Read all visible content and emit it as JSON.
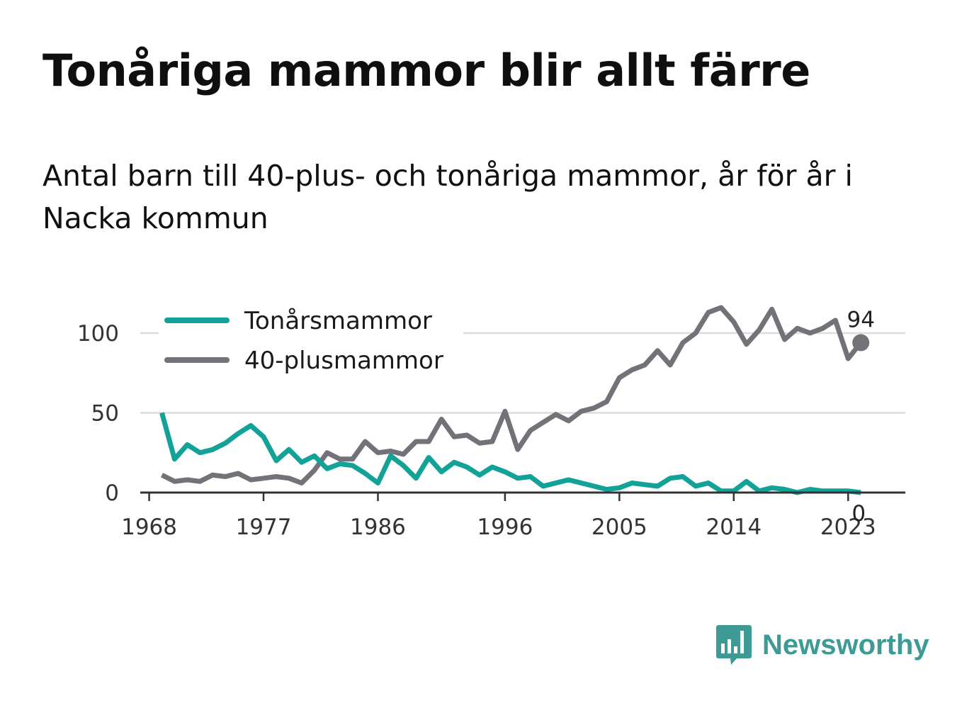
{
  "header": {
    "title": "Tonåriga mammor blir allt färre",
    "subtitle": "Antal barn till 40-plus- och tonåriga mammor, år för år i Nacka kommun"
  },
  "brand": {
    "name": "Newsworthy",
    "icon": "bar-chart-speech-bubble-icon",
    "color": "#3d9a94"
  },
  "chart_data": {
    "type": "line",
    "x": [
      1969,
      1970,
      1971,
      1972,
      1973,
      1974,
      1975,
      1976,
      1977,
      1978,
      1979,
      1980,
      1981,
      1982,
      1983,
      1984,
      1985,
      1986,
      1987,
      1988,
      1989,
      1990,
      1991,
      1992,
      1993,
      1994,
      1995,
      1996,
      1997,
      1998,
      1999,
      2000,
      2001,
      2002,
      2003,
      2004,
      2005,
      2006,
      2007,
      2008,
      2009,
      2010,
      2011,
      2012,
      2013,
      2014,
      2015,
      2016,
      2017,
      2018,
      2019,
      2020,
      2021,
      2022,
      2023,
      2024
    ],
    "series": [
      {
        "name": "Tonårsmammor",
        "color": "#13a297",
        "values": [
          50,
          21,
          30,
          25,
          27,
          31,
          37,
          42,
          35,
          20,
          27,
          19,
          23,
          15,
          18,
          17,
          12,
          6,
          23,
          17,
          9,
          22,
          13,
          19,
          16,
          11,
          16,
          13,
          9,
          10,
          4,
          6,
          8,
          6,
          4,
          2,
          3,
          6,
          5,
          4,
          9,
          10,
          4,
          6,
          1,
          1,
          7,
          1,
          3,
          2,
          0,
          2,
          1,
          1,
          1,
          0
        ]
      },
      {
        "name": "40-plusmammor",
        "color": "#737278",
        "values": [
          11,
          7,
          8,
          7,
          11,
          10,
          12,
          8,
          9,
          10,
          9,
          6,
          14,
          25,
          21,
          21,
          32,
          25,
          26,
          24,
          32,
          32,
          46,
          35,
          36,
          31,
          32,
          51,
          27,
          39,
          44,
          49,
          45,
          51,
          53,
          57,
          72,
          77,
          80,
          89,
          80,
          94,
          100,
          113,
          116,
          107,
          93,
          102,
          115,
          96,
          103,
          100,
          103,
          108,
          84,
          94
        ]
      }
    ],
    "xticks": [
      1968,
      1977,
      1986,
      1996,
      2005,
      2014,
      2023
    ],
    "yticks": [
      0,
      50,
      100
    ],
    "ylim": [
      0,
      120
    ],
    "xlim": [
      1967.3,
      2027.5
    ],
    "grid": true,
    "legend": "top-left",
    "end_labels": {
      "40-plusmammor": "94",
      "Tonårsmammor": "0"
    }
  }
}
